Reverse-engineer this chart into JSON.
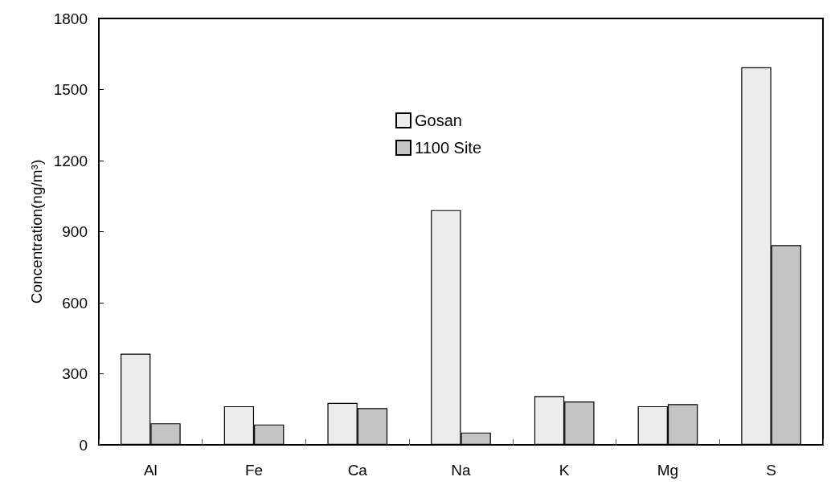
{
  "chart_data": {
    "type": "bar",
    "ylabel": "Concentration(ng/m³)",
    "categories": [
      "Al",
      "Fe",
      "Ca",
      "Na",
      "K",
      "Mg",
      "S"
    ],
    "series": [
      {
        "name": "Gosan",
        "color": "#ececec",
        "values": [
          385,
          163,
          177,
          991,
          206,
          163,
          1594
        ]
      },
      {
        "name": "1100 Site",
        "color": "#c4c4c4",
        "values": [
          91,
          86,
          155,
          52,
          183,
          172,
          843
        ]
      }
    ],
    "ylim": [
      0,
      1800
    ],
    "yticks": [
      0,
      300,
      600,
      900,
      1200,
      1500,
      1800
    ],
    "grid": false,
    "legend": "top"
  }
}
